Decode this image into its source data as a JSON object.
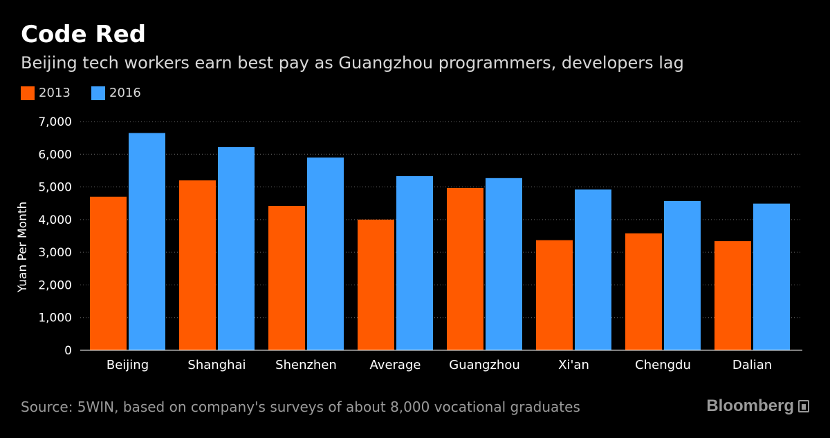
{
  "title": "Code Red",
  "subtitle": "Beijing tech workers earn best pay as Guangzhou programmers, developers lag",
  "source": "Source: 5WIN, based on company's surveys of about 8,000 vocational graduates",
  "brand": "Bloomberg",
  "brand_icon": "bloomberg-terminal-icon",
  "chart_data": {
    "type": "bar",
    "title": "Code Red",
    "subtitle": "Beijing tech workers earn best pay as Guangzhou programmers, developers lag",
    "ylabel": "Yuan Per Month",
    "xlabel": "",
    "ylim": [
      0,
      7000
    ],
    "yticks": [
      0,
      1000,
      2000,
      3000,
      4000,
      5000,
      6000,
      7000
    ],
    "ytick_labels": [
      "0",
      "1,000",
      "2,000",
      "3,000",
      "4,000",
      "5,000",
      "6,000",
      "7,000"
    ],
    "grid": true,
    "legend_position": "top-left",
    "categories": [
      "Beijing",
      "Shanghai",
      "Shenzhen",
      "Average",
      "Guangzhou",
      "Xi'an",
      "Chengdu",
      "Dalian"
    ],
    "series": [
      {
        "name": "2013",
        "color": "#ff5a00",
        "values": [
          4700,
          5200,
          4420,
          4000,
          4970,
          3370,
          3580,
          3340
        ]
      },
      {
        "name": "2016",
        "color": "#3ea1ff",
        "values": [
          6650,
          6220,
          5900,
          5330,
          5270,
          4920,
          4570,
          4490
        ]
      }
    ]
  }
}
